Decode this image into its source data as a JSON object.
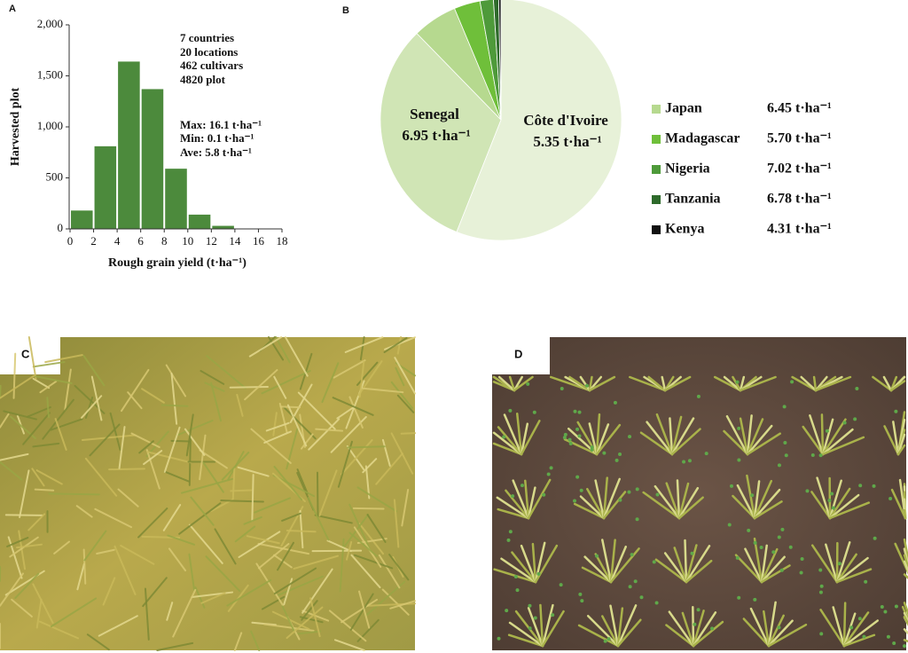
{
  "panels": {
    "a": "A",
    "b": "B",
    "c": "C",
    "d": "D"
  },
  "chart_data": [
    {
      "type": "histogram",
      "bins": [
        0,
        2,
        4,
        6,
        8,
        10,
        12,
        14
      ],
      "values": [
        180,
        810,
        1640,
        1370,
        590,
        140,
        30
      ],
      "color": "#4c8a3c",
      "xlim": [
        0,
        18
      ],
      "xticks": [
        0,
        2,
        4,
        6,
        8,
        10,
        12,
        14,
        16,
        18
      ],
      "ylim": [
        0,
        2000
      ],
      "yticks": [
        0,
        500,
        {
          "value": 1000,
          "label": "1,000"
        },
        {
          "value": 1500,
          "label": "1,500"
        },
        {
          "value": 2000,
          "label": "2,000"
        }
      ],
      "x_label": "Rough grain yield (t·ha⁻¹)",
      "y_label": "Harvested plot",
      "annotations": [
        "7 countries",
        "20 locations",
        "462 cultivars",
        "4820 plot",
        "Max: 16.1 t·ha⁻¹",
        "Min: 0.1 t·ha⁻¹",
        "Ave: 5.8 t·ha⁻¹"
      ]
    },
    {
      "type": "pie",
      "categories": [
        "Côte d'Ivoire",
        "Senegal",
        "Japan",
        "Madagascar",
        "Nigeria",
        "Tanzania",
        "Kenya"
      ],
      "values": [
        56,
        31.7,
        6,
        3.5,
        1.8,
        0.7,
        0.3
      ],
      "colors": [
        "#e7f1d8",
        "#d0e5b5",
        "#b6d98f",
        "#6fbf3a",
        "#4e9a3a",
        "#2e6a2b",
        "#111111"
      ],
      "yield_labels": [
        "5.35 t·ha⁻¹",
        "6.95 t·ha⁻¹",
        "6.45 t·ha⁻¹",
        "5.70 t·ha⁻¹",
        "7.02 t·ha⁻¹",
        "6.78 t·ha⁻¹",
        "4.31 t·ha⁻¹"
      ]
    }
  ]
}
